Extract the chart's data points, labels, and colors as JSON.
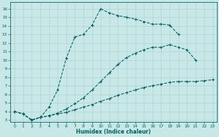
{
  "xlabel": "Humidex (Indice chaleur)",
  "bg_color": "#c8e8e8",
  "line_color": "#006060",
  "grid_color": "#a8cccc",
  "xlim": [
    -0.5,
    23.5
  ],
  "ylim": [
    2.8,
    16.8
  ],
  "yticks": [
    3,
    4,
    5,
    6,
    7,
    8,
    9,
    10,
    11,
    12,
    13,
    14,
    15,
    16
  ],
  "xticks": [
    0,
    1,
    2,
    3,
    4,
    5,
    6,
    7,
    8,
    9,
    10,
    11,
    12,
    13,
    14,
    15,
    16,
    17,
    18,
    19,
    20,
    21,
    22,
    23
  ],
  "curves": [
    {
      "x": [
        0,
        1,
        2,
        3,
        4,
        5,
        6,
        7,
        8,
        9,
        10,
        11,
        12,
        13,
        14,
        15,
        16,
        17,
        18,
        19
      ],
      "y": [
        4.0,
        3.7,
        3.0,
        3.3,
        4.5,
        6.5,
        10.2,
        12.7,
        13.0,
        14.1,
        16.0,
        15.5,
        15.2,
        15.0,
        14.8,
        14.5,
        14.2,
        14.2,
        14.1,
        13.0
      ]
    },
    {
      "x": [
        0,
        1,
        2,
        3,
        4,
        5,
        6,
        7,
        8,
        9,
        10,
        11,
        12,
        13,
        14,
        15,
        16,
        17,
        18,
        19,
        20,
        21
      ],
      "y": [
        4.0,
        3.7,
        3.0,
        3.3,
        3.5,
        3.8,
        4.3,
        4.9,
        5.6,
        6.5,
        7.5,
        8.5,
        9.5,
        10.3,
        10.8,
        11.2,
        11.5,
        11.5,
        11.8,
        11.5,
        11.2,
        10.0
      ]
    },
    {
      "x": [
        0,
        1,
        2,
        3,
        4,
        5,
        6,
        7,
        8,
        9,
        10,
        11,
        12,
        13,
        14,
        15,
        16,
        17,
        18,
        19,
        20,
        21,
        22,
        23
      ],
      "y": [
        4.0,
        3.7,
        3.0,
        3.3,
        3.5,
        3.7,
        3.9,
        4.2,
        4.5,
        4.8,
        5.2,
        5.5,
        5.9,
        6.2,
        6.5,
        6.8,
        7.0,
        7.2,
        7.4,
        7.5,
        7.5,
        7.5,
        7.6,
        7.7
      ]
    }
  ]
}
